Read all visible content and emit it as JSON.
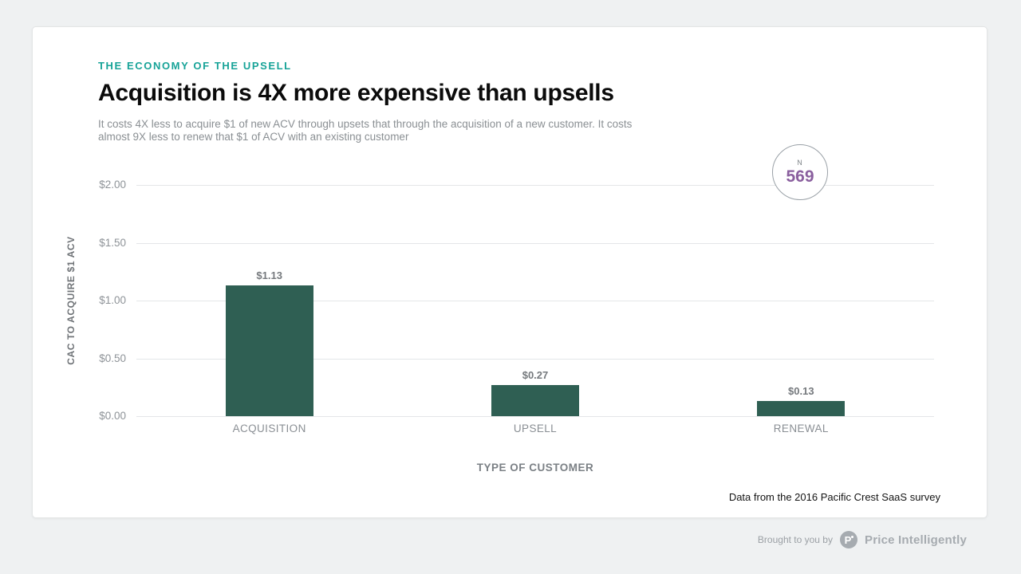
{
  "card": {
    "eyebrow": "THE ECONOMY OF THE UPSELL",
    "title": "Acquisition is 4X more expensive than upsells",
    "subtitle": "It costs 4X less to acquire $1 of new ACV through upsets that through the acquisition of a new customer. It costs almost 9X less to renew that $1 of ACV with an existing customer",
    "attribution": "Data from the 2016 Pacific Crest SaaS survey"
  },
  "badge": {
    "label": "N",
    "value": "569"
  },
  "chart_data": {
    "type": "bar",
    "title": "Acquisition is 4X more expensive than upsells",
    "categories": [
      "ACQUISITION",
      "UPSELL",
      "RENEWAL"
    ],
    "values": [
      1.13,
      0.27,
      0.13
    ],
    "value_labels": [
      "$1.13",
      "$0.27",
      "$0.13"
    ],
    "xlabel": "TYPE OF CUSTOMER",
    "ylabel": "CAC TO ACQUIRE $1 ACV",
    "ylim": [
      0,
      2
    ],
    "yticks": [
      2.0,
      1.5,
      1.0,
      0.5,
      0.0
    ],
    "ytick_labels": [
      "$2.00",
      "$1.50",
      "$1.00",
      "$0.50",
      "$0.00"
    ],
    "bar_color": "#2f5f53",
    "grid": true,
    "legend_position": "none",
    "sample_size": 569
  },
  "footer": {
    "brought_by": "Brought to you by",
    "brand": "Price Intelligently"
  },
  "colors": {
    "accent_teal": "#17a398",
    "bar_green": "#2f5f53",
    "n_purple": "#8a5f9e",
    "page_background": "#eff1f2"
  }
}
